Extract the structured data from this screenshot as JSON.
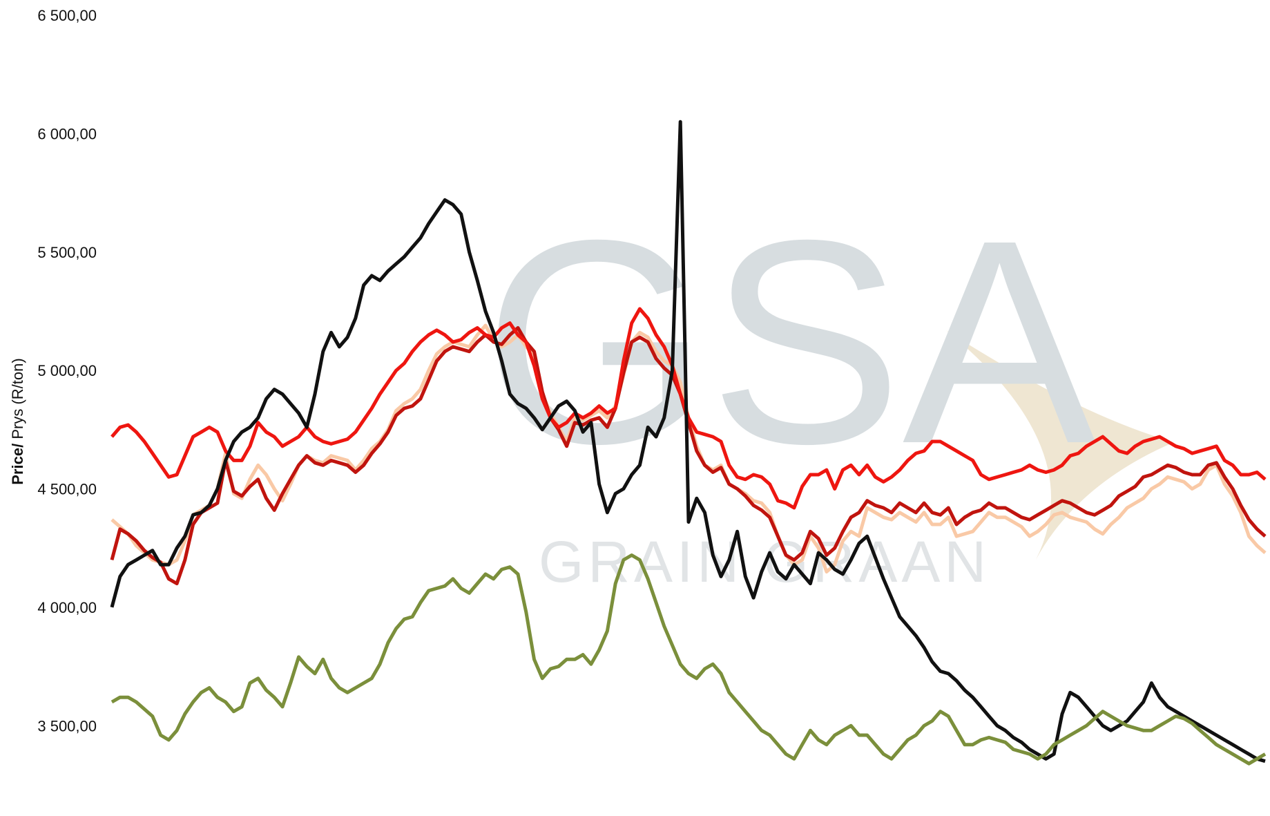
{
  "chart_data": {
    "type": "line",
    "title": "",
    "xlabel": "",
    "ylabel_bold": "Price/",
    "ylabel_rest": " Prys (R/ton)",
    "ylim": [
      3250,
      6500
    ],
    "yticks": [
      {
        "value": 6500,
        "label": "6 500,00"
      },
      {
        "value": 6000,
        "label": "6 000,00"
      },
      {
        "value": 5500,
        "label": "5 500,00"
      },
      {
        "value": 5000,
        "label": "5 000,00"
      },
      {
        "value": 4500,
        "label": "4 500,00"
      },
      {
        "value": 4000,
        "label": "4 000,00"
      },
      {
        "value": 3500,
        "label": "3 500,00"
      }
    ],
    "grid": false,
    "legend": "none",
    "watermark": {
      "big": "GSA",
      "small": "GRAIN  GRAAN"
    },
    "series": [
      {
        "color": "#f9c9a6",
        "values": [
          4370,
          4340,
          4310,
          4260,
          4230,
          4200,
          4190,
          4180,
          4200,
          4280,
          4390,
          4410,
          4430,
          4500,
          4650,
          4480,
          4460,
          4540,
          4600,
          4560,
          4500,
          4450,
          4520,
          4600,
          4640,
          4620,
          4610,
          4640,
          4630,
          4620,
          4580,
          4620,
          4670,
          4700,
          4750,
          4830,
          4860,
          4880,
          4920,
          5000,
          5070,
          5100,
          5120,
          5110,
          5100,
          5150,
          5190,
          5130,
          5100,
          5120,
          5150,
          5100,
          5070,
          4900,
          4820,
          4760,
          4700,
          4800,
          4790,
          4810,
          4830,
          4800,
          4850,
          4980,
          5120,
          5160,
          5140,
          5080,
          5040,
          5020,
          4950,
          4800,
          4680,
          4600,
          4580,
          4600,
          4520,
          4500,
          4480,
          4450,
          4440,
          4400,
          4300,
          4220,
          4180,
          4200,
          4300,
          4250,
          4150,
          4180,
          4280,
          4320,
          4300,
          4420,
          4400,
          4380,
          4370,
          4400,
          4380,
          4360,
          4400,
          4350,
          4350,
          4380,
          4300,
          4310,
          4320,
          4360,
          4400,
          4380,
          4380,
          4360,
          4340,
          4300,
          4320,
          4350,
          4390,
          4400,
          4380,
          4370,
          4360,
          4330,
          4310,
          4350,
          4380,
          4420,
          4440,
          4460,
          4500,
          4520,
          4550,
          4540,
          4530,
          4500,
          4520,
          4580,
          4600,
          4520,
          4470,
          4400,
          4300,
          4260,
          4230
        ]
      },
      {
        "color": "#c0140e",
        "values": [
          4200,
          4330,
          4310,
          4280,
          4240,
          4210,
          4190,
          4120,
          4100,
          4200,
          4350,
          4400,
          4420,
          4440,
          4620,
          4490,
          4470,
          4510,
          4540,
          4460,
          4410,
          4480,
          4540,
          4600,
          4640,
          4610,
          4600,
          4620,
          4610,
          4600,
          4570,
          4600,
          4650,
          4690,
          4740,
          4810,
          4840,
          4850,
          4880,
          4960,
          5040,
          5080,
          5100,
          5090,
          5080,
          5120,
          5150,
          5120,
          5110,
          5150,
          5180,
          5120,
          5080,
          4910,
          4800,
          4750,
          4680,
          4780,
          4770,
          4790,
          4800,
          4760,
          4840,
          4990,
          5120,
          5140,
          5120,
          5050,
          5010,
          4980,
          4900,
          4780,
          4660,
          4600,
          4570,
          4590,
          4520,
          4500,
          4470,
          4430,
          4410,
          4380,
          4300,
          4220,
          4200,
          4230,
          4320,
          4290,
          4220,
          4250,
          4320,
          4380,
          4400,
          4450,
          4430,
          4420,
          4400,
          4440,
          4420,
          4400,
          4440,
          4400,
          4390,
          4420,
          4350,
          4380,
          4400,
          4410,
          4440,
          4420,
          4420,
          4400,
          4380,
          4370,
          4390,
          4410,
          4430,
          4450,
          4440,
          4420,
          4400,
          4390,
          4410,
          4430,
          4470,
          4490,
          4510,
          4550,
          4560,
          4580,
          4600,
          4590,
          4570,
          4560,
          4560,
          4600,
          4610,
          4550,
          4500,
          4430,
          4370,
          4330,
          4300
        ]
      },
      {
        "color": "#ee1610",
        "values": [
          4720,
          4760,
          4770,
          4740,
          4700,
          4650,
          4600,
          4550,
          4560,
          4640,
          4720,
          4740,
          4760,
          4740,
          4660,
          4620,
          4620,
          4680,
          4780,
          4740,
          4720,
          4680,
          4700,
          4720,
          4760,
          4720,
          4700,
          4690,
          4700,
          4710,
          4740,
          4790,
          4840,
          4900,
          4950,
          5000,
          5030,
          5080,
          5120,
          5150,
          5170,
          5150,
          5120,
          5130,
          5160,
          5180,
          5150,
          5140,
          5180,
          5200,
          5150,
          5120,
          5020,
          4880,
          4800,
          4760,
          4780,
          4820,
          4800,
          4820,
          4850,
          4820,
          4840,
          5040,
          5200,
          5260,
          5220,
          5150,
          5100,
          5020,
          4900,
          4800,
          4740,
          4730,
          4720,
          4700,
          4600,
          4550,
          4540,
          4560,
          4550,
          4520,
          4450,
          4440,
          4420,
          4510,
          4560,
          4560,
          4580,
          4500,
          4580,
          4600,
          4560,
          4600,
          4550,
          4530,
          4550,
          4580,
          4620,
          4650,
          4660,
          4700,
          4700,
          4680,
          4660,
          4640,
          4620,
          4560,
          4540,
          4550,
          4560,
          4570,
          4580,
          4600,
          4580,
          4570,
          4580,
          4600,
          4640,
          4650,
          4680,
          4700,
          4720,
          4690,
          4660,
          4650,
          4680,
          4700,
          4710,
          4720,
          4700,
          4680,
          4670,
          4650,
          4660,
          4670,
          4680,
          4620,
          4600,
          4560,
          4560,
          4570,
          4540
        ]
      },
      {
        "color": "#111111",
        "values": [
          4000,
          4130,
          4180,
          4200,
          4220,
          4240,
          4180,
          4180,
          4250,
          4300,
          4390,
          4400,
          4430,
          4500,
          4620,
          4700,
          4740,
          4760,
          4800,
          4880,
          4920,
          4900,
          4860,
          4820,
          4760,
          4900,
          5080,
          5160,
          5100,
          5140,
          5220,
          5360,
          5400,
          5380,
          5420,
          5450,
          5480,
          5520,
          5560,
          5620,
          5670,
          5720,
          5700,
          5660,
          5500,
          5380,
          5250,
          5160,
          5040,
          4900,
          4860,
          4840,
          4800,
          4750,
          4800,
          4850,
          4870,
          4830,
          4740,
          4780,
          4520,
          4400,
          4480,
          4500,
          4560,
          4600,
          4760,
          4720,
          4800,
          5000,
          6050,
          4360,
          4460,
          4400,
          4220,
          4130,
          4200,
          4320,
          4130,
          4040,
          4150,
          4230,
          4150,
          4120,
          4180,
          4140,
          4100,
          4230,
          4200,
          4160,
          4140,
          4200,
          4270,
          4300,
          4210,
          4120,
          4040,
          3960,
          3920,
          3880,
          3830,
          3770,
          3730,
          3720,
          3690,
          3650,
          3620,
          3580,
          3540,
          3500,
          3480,
          3450,
          3430,
          3400,
          3380,
          3360,
          3380,
          3550,
          3640,
          3620,
          3580,
          3540,
          3500,
          3480,
          3500,
          3520,
          3560,
          3600,
          3680,
          3620,
          3580,
          3560,
          3540,
          3520,
          3500,
          3480,
          3460,
          3440,
          3420,
          3400,
          3380,
          3360,
          3350
        ]
      },
      {
        "color": "#7b8f3b",
        "values": [
          3600,
          3620,
          3620,
          3600,
          3570,
          3540,
          3460,
          3440,
          3480,
          3550,
          3600,
          3640,
          3660,
          3620,
          3600,
          3560,
          3580,
          3680,
          3700,
          3650,
          3620,
          3580,
          3680,
          3790,
          3750,
          3720,
          3780,
          3700,
          3660,
          3640,
          3660,
          3680,
          3700,
          3760,
          3850,
          3910,
          3950,
          3960,
          4020,
          4070,
          4080,
          4090,
          4120,
          4080,
          4060,
          4100,
          4140,
          4120,
          4160,
          4170,
          4140,
          3980,
          3780,
          3700,
          3740,
          3750,
          3780,
          3780,
          3800,
          3760,
          3820,
          3900,
          4100,
          4200,
          4220,
          4200,
          4120,
          4020,
          3920,
          3840,
          3760,
          3720,
          3700,
          3740,
          3760,
          3720,
          3640,
          3600,
          3560,
          3520,
          3480,
          3460,
          3420,
          3380,
          3360,
          3420,
          3480,
          3440,
          3420,
          3460,
          3480,
          3500,
          3460,
          3460,
          3420,
          3380,
          3360,
          3400,
          3440,
          3460,
          3500,
          3520,
          3560,
          3540,
          3480,
          3420,
          3420,
          3440,
          3450,
          3440,
          3430,
          3400,
          3390,
          3380,
          3360,
          3380,
          3420,
          3440,
          3460,
          3480,
          3500,
          3530,
          3560,
          3540,
          3520,
          3500,
          3490,
          3480,
          3480,
          3500,
          3520,
          3540,
          3530,
          3510,
          3480,
          3450,
          3420,
          3400,
          3380,
          3360,
          3340,
          3360,
          3380
        ]
      }
    ]
  }
}
